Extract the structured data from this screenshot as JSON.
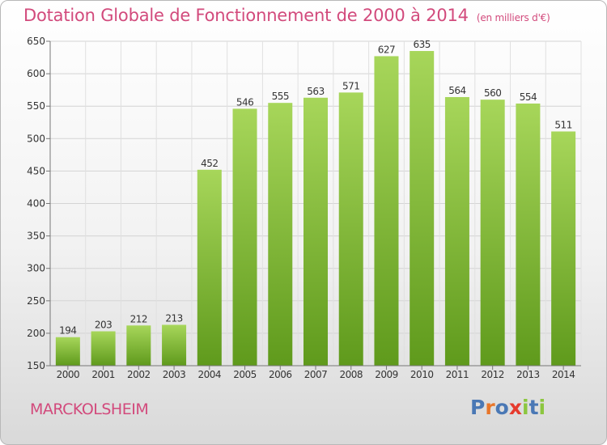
{
  "title": "Dotation Globale de Fonctionnement de 2000 à 2014",
  "unit": "(en milliers d'€)",
  "commune": "MARCKOLSHEIM",
  "brand": {
    "name": "Proxiti",
    "colors": [
      "#4a78b5",
      "#e8762a",
      "#4a78b5",
      "#e63b2e",
      "#8cc63f",
      "#4a78b5",
      "#8cc63f"
    ]
  },
  "colors": {
    "title": "#d24a7c",
    "bar_top": "#a7d65a",
    "bar_bottom": "#5f9a1c"
  },
  "chart_data": {
    "type": "bar",
    "categories": [
      "2000",
      "2001",
      "2002",
      "2003",
      "2004",
      "2005",
      "2006",
      "2007",
      "2008",
      "2009",
      "2010",
      "2011",
      "2012",
      "2013",
      "2014"
    ],
    "values": [
      194,
      203,
      212,
      213,
      452,
      546,
      555,
      563,
      571,
      627,
      635,
      564,
      560,
      554,
      511
    ],
    "yticks": [
      150,
      200,
      250,
      300,
      350,
      400,
      450,
      500,
      550,
      600,
      650
    ],
    "ylim": [
      150,
      650
    ],
    "grid": true,
    "title": "Dotation Globale de Fonctionnement de 2000 à 2014",
    "xlabel": "",
    "ylabel": ""
  }
}
